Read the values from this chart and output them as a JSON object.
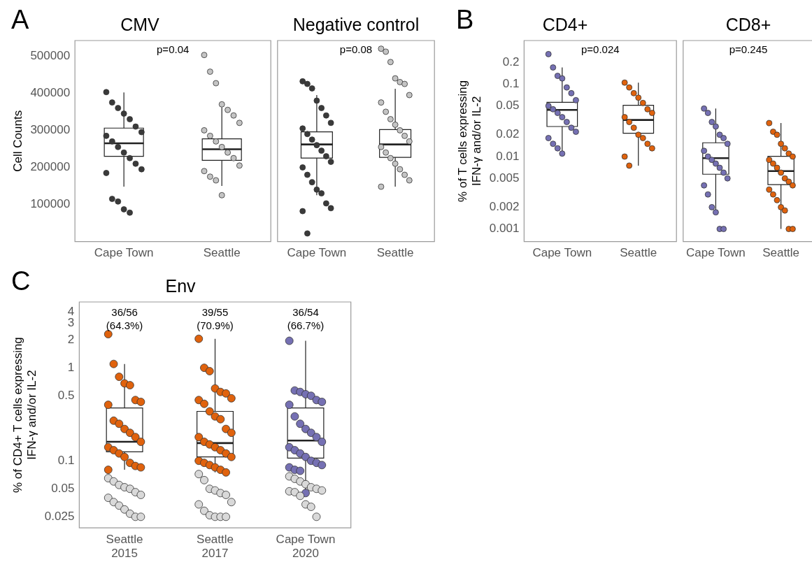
{
  "chart_data": [
    {
      "type": "box",
      "title": "CMV",
      "ylabel": "Cell Counts",
      "categories": [
        "Cape Town",
        "Seattle"
      ],
      "ylim": [
        0,
        542000
      ],
      "yticks": [
        100000,
        200000,
        300000,
        400000,
        500000
      ],
      "annotations": [
        "A",
        "p=0.04"
      ],
      "boxes": [
        {
          "low": 148000,
          "q1": 230000,
          "median": 265000,
          "q3": 306000,
          "high": 402000
        },
        {
          "low": 150000,
          "q1": 219000,
          "median": 249000,
          "q3": 277000,
          "high": 362000
        }
      ],
      "series": [
        {
          "type": "scatter",
          "color": "#3a3a3a",
          "x": [
            "Cape Town",
            "Cape Town",
            "Cape Town",
            "Cape Town",
            "Cape Town",
            "Cape Town",
            "Cape Town",
            "Cape Town",
            "Cape Town",
            "Cape Town",
            "Cape Town",
            "Cape Town",
            "Cape Town",
            "Cape Town",
            "Cape Town",
            "Cape Town",
            "Cape Town",
            "Cape Town",
            "Cape Town"
          ],
          "values": [
            403000,
            375000,
            360000,
            345000,
            330000,
            310000,
            295000,
            285000,
            270000,
            255000,
            240000,
            225000,
            210000,
            195000,
            185000,
            115000,
            108000,
            87000,
            78000
          ]
        },
        {
          "type": "scatter",
          "color": "#c4c4c4",
          "x": [
            "Seattle",
            "Seattle",
            "Seattle",
            "Seattle",
            "Seattle",
            "Seattle",
            "Seattle",
            "Seattle",
            "Seattle",
            "Seattle",
            "Seattle",
            "Seattle",
            "Seattle",
            "Seattle",
            "Seattle",
            "Seattle",
            "Seattle",
            "Seattle"
          ],
          "values": [
            503000,
            458000,
            427000,
            370000,
            355000,
            340000,
            320000,
            300000,
            285000,
            270000,
            255000,
            240000,
            225000,
            205000,
            190000,
            175000,
            165000,
            125000
          ]
        }
      ]
    },
    {
      "type": "box",
      "title": "Negative control",
      "categories": [
        "Cape Town",
        "Seattle"
      ],
      "ylim": [
        0,
        542000
      ],
      "yticks": [
        100000,
        200000,
        300000,
        400000,
        500000
      ],
      "tick_labels": "x",
      "annotations": [
        "p=0.08"
      ],
      "boxes": [
        {
          "low": 125000,
          "q1": 225000,
          "median": 262000,
          "q3": 296000,
          "high": 395000
        },
        {
          "low": 148000,
          "q1": 227000,
          "median": 262000,
          "q3": 302000,
          "high": 412000
        }
      ],
      "series": [
        {
          "type": "scatter",
          "color": "#3a3a3a",
          "x": [
            "Cape Town",
            "Cape Town",
            "Cape Town",
            "Cape Town",
            "Cape Town",
            "Cape Town",
            "Cape Town",
            "Cape Town",
            "Cape Town",
            "Cape Town",
            "Cape Town",
            "Cape Town",
            "Cape Town",
            "Cape Town",
            "Cape Town",
            "Cape Town",
            "Cape Town",
            "Cape Town",
            "Cape Town",
            "Cape Town",
            "Cape Town",
            "Cape Town",
            "Cape Town"
          ],
          "values": [
            432000,
            425000,
            413000,
            380000,
            360000,
            340000,
            320000,
            305000,
            290000,
            275000,
            260000,
            245000,
            230000,
            215000,
            200000,
            180000,
            160000,
            140000,
            130000,
            103000,
            90000,
            82000,
            22000
          ]
        },
        {
          "type": "scatter",
          "color": "#c4c4c4",
          "x": [
            "Seattle",
            "Seattle",
            "Seattle",
            "Seattle",
            "Seattle",
            "Seattle",
            "Seattle",
            "Seattle",
            "Seattle",
            "Seattle",
            "Seattle",
            "Seattle",
            "Seattle",
            "Seattle",
            "Seattle",
            "Seattle",
            "Seattle",
            "Seattle",
            "Seattle",
            "Seattle",
            "Seattle",
            "Seattle"
          ],
          "values": [
            520000,
            512000,
            484000,
            440000,
            430000,
            425000,
            395000,
            375000,
            350000,
            330000,
            315000,
            300000,
            285000,
            270000,
            255000,
            240000,
            225000,
            210000,
            195000,
            180000,
            165000,
            148000
          ]
        }
      ]
    },
    {
      "type": "box",
      "title": "CD4+",
      "ylabel": "% of T cells expressing\nIFN-γ and/or IL-2",
      "categories": [
        "Cape Town",
        "Seattle"
      ],
      "log": true,
      "ylim": [
        0.00067,
        0.4
      ],
      "yticks": [
        0.001,
        0.002,
        0.005,
        0.01,
        0.02,
        0.05,
        0.1,
        0.2
      ],
      "annotations": [
        "B",
        "p=0.024"
      ],
      "boxes": [
        {
          "low": 0.011,
          "q1": 0.026,
          "median": 0.044,
          "q3": 0.056,
          "high": 0.17
        },
        {
          "low": 0.0075,
          "q1": 0.021,
          "median": 0.032,
          "q3": 0.051,
          "high": 0.105
        }
      ],
      "series": [
        {
          "type": "scatter",
          "color": "#7570b3",
          "x": [
            "Cape Town",
            "Cape Town",
            "Cape Town",
            "Cape Town",
            "Cape Town",
            "Cape Town",
            "Cape Town",
            "Cape Town",
            "Cape Town",
            "Cape Town",
            "Cape Town",
            "Cape Town",
            "Cape Town",
            "Cape Town",
            "Cape Town",
            "Cape Town",
            "Cape Town",
            "Cape Town"
          ],
          "values": [
            0.26,
            0.17,
            0.13,
            0.12,
            0.09,
            0.075,
            0.06,
            0.05,
            0.045,
            0.04,
            0.035,
            0.03,
            0.025,
            0.022,
            0.018,
            0.015,
            0.013,
            0.011
          ]
        },
        {
          "type": "scatter",
          "color": "#e0620d",
          "x": [
            "Seattle",
            "Seattle",
            "Seattle",
            "Seattle",
            "Seattle",
            "Seattle",
            "Seattle",
            "Seattle",
            "Seattle",
            "Seattle",
            "Seattle",
            "Seattle",
            "Seattle",
            "Seattle",
            "Seattle",
            "Seattle"
          ],
          "values": [
            0.105,
            0.09,
            0.075,
            0.065,
            0.055,
            0.045,
            0.04,
            0.035,
            0.03,
            0.025,
            0.02,
            0.018,
            0.015,
            0.013,
            0.01,
            0.0075
          ]
        }
      ]
    },
    {
      "type": "box",
      "title": "CD8+",
      "categories": [
        "Cape Town",
        "Seattle"
      ],
      "log": true,
      "ylim": [
        0.00067,
        0.4
      ],
      "yticks": [
        0.001,
        0.002,
        0.005,
        0.01,
        0.02,
        0.05,
        0.1,
        0.2
      ],
      "tick_labels": "x",
      "annotations": [
        "p=0.245"
      ],
      "boxes": [
        {
          "low": 0.0017,
          "q1": 0.0057,
          "median": 0.0095,
          "q3": 0.0155,
          "high": 0.046
        },
        {
          "low": 0.001,
          "q1": 0.0041,
          "median": 0.0063,
          "q3": 0.0101,
          "high": 0.029
        }
      ],
      "series": [
        {
          "type": "scatter",
          "color": "#7570b3",
          "x": [
            "Cape Town",
            "Cape Town",
            "Cape Town",
            "Cape Town",
            "Cape Town",
            "Cape Town",
            "Cape Town",
            "Cape Town",
            "Cape Town",
            "Cape Town",
            "Cape Town",
            "Cape Town",
            "Cape Town",
            "Cape Town",
            "Cape Town",
            "Cape Town",
            "Cape Town",
            "Cape Town",
            "Cape Town",
            "Cape Town"
          ],
          "values": [
            0.046,
            0.04,
            0.03,
            0.026,
            0.02,
            0.018,
            0.015,
            0.012,
            0.01,
            0.009,
            0.008,
            0.007,
            0.006,
            0.005,
            0.004,
            0.003,
            0.002,
            0.0017,
            0.001,
            0.001
          ]
        },
        {
          "type": "scatter",
          "color": "#e0620d",
          "x": [
            "Seattle",
            "Seattle",
            "Seattle",
            "Seattle",
            "Seattle",
            "Seattle",
            "Seattle",
            "Seattle",
            "Seattle",
            "Seattle",
            "Seattle",
            "Seattle",
            "Seattle",
            "Seattle",
            "Seattle",
            "Seattle",
            "Seattle",
            "Seattle",
            "Seattle",
            "Seattle",
            "Seattle"
          ],
          "values": [
            0.029,
            0.022,
            0.02,
            0.015,
            0.013,
            0.011,
            0.01,
            0.009,
            0.008,
            0.007,
            0.006,
            0.005,
            0.0045,
            0.004,
            0.0035,
            0.003,
            0.0025,
            0.002,
            0.0018,
            0.001,
            0.001
          ]
        }
      ]
    },
    {
      "type": "box",
      "title": "Env",
      "ylabel": "% of CD4+ T cells expressing\nIFN-γ and/or IL-2",
      "categories": [
        "Seattle 2015",
        "Seattle 2017",
        "Cape Town 2020"
      ],
      "log": true,
      "ylim": [
        0.019,
        5.1
      ],
      "yticks": [
        0.025,
        0.05,
        0.1,
        0.5,
        1,
        2,
        3,
        4
      ],
      "annotations": [
        "C",
        "36/56\n(64.3%)",
        "39/55\n(70.9%)",
        "36/54\n(66.7%)"
      ],
      "boxes": [
        {
          "low": 0.08,
          "q1": 0.125,
          "median": 0.16,
          "q3": 0.37,
          "high": 1.1
        },
        {
          "low": 0.075,
          "q1": 0.11,
          "median": 0.155,
          "q3": 0.34,
          "high": 2.05
        },
        {
          "low": 0.045,
          "q1": 0.107,
          "median": 0.165,
          "q3": 0.37,
          "high": 1.95
        }
      ],
      "series": [
        {
          "type": "scatter",
          "color": "#d9d9d9",
          "x": [
            "Seattle 2015",
            "Seattle 2015",
            "Seattle 2015",
            "Seattle 2015",
            "Seattle 2015",
            "Seattle 2015",
            "Seattle 2015",
            "Seattle 2015",
            "Seattle 2015",
            "Seattle 2015",
            "Seattle 2015",
            "Seattle 2015",
            "Seattle 2015",
            "Seattle 2015"
          ],
          "values": [
            0.065,
            0.06,
            0.055,
            0.052,
            0.05,
            0.046,
            0.043,
            0.04,
            0.036,
            0.033,
            0.03,
            0.027,
            0.025,
            0.025
          ]
        },
        {
          "type": "scatter",
          "color": "#d9d9d9",
          "x": [
            "Seattle 2017",
            "Seattle 2017",
            "Seattle 2017",
            "Seattle 2017",
            "Seattle 2017",
            "Seattle 2017",
            "Seattle 2017",
            "Seattle 2017",
            "Seattle 2017",
            "Seattle 2017",
            "Seattle 2017",
            "Seattle 2017",
            "Seattle 2017"
          ],
          "values": [
            0.072,
            0.062,
            0.05,
            0.048,
            0.045,
            0.043,
            0.036,
            0.034,
            0.029,
            0.026,
            0.025,
            0.025,
            0.025
          ]
        },
        {
          "type": "scatter",
          "color": "#d9d9d9",
          "x": [
            "Cape Town 2020",
            "Cape Town 2020",
            "Cape Town 2020",
            "Cape Town 2020",
            "Cape Town 2020",
            "Cape Town 2020",
            "Cape Town 2020",
            "Cape Town 2020",
            "Cape Town 2020",
            "Cape Town 2020",
            "Cape Town 2020",
            "Cape Town 2020",
            "Cape Town 2020"
          ],
          "values": [
            0.068,
            0.064,
            0.06,
            0.056,
            0.052,
            0.05,
            0.048,
            0.047,
            0.046,
            0.042,
            0.034,
            0.032,
            0.025
          ]
        },
        {
          "type": "scatter",
          "color": "#e0620d",
          "x": [
            "Seattle 2015",
            "Seattle 2015",
            "Seattle 2015",
            "Seattle 2015",
            "Seattle 2015",
            "Seattle 2015",
            "Seattle 2015",
            "Seattle 2015",
            "Seattle 2015",
            "Seattle 2015",
            "Seattle 2015",
            "Seattle 2015",
            "Seattle 2015",
            "Seattle 2015",
            "Seattle 2015",
            "Seattle 2015",
            "Seattle 2015",
            "Seattle 2015",
            "Seattle 2015",
            "Seattle 2015",
            "Seattle 2015",
            "Seattle 2015"
          ],
          "values": [
            2.3,
            1.1,
            0.8,
            0.68,
            0.65,
            0.45,
            0.43,
            0.4,
            0.27,
            0.25,
            0.22,
            0.2,
            0.18,
            0.16,
            0.14,
            0.13,
            0.12,
            0.11,
            0.095,
            0.088,
            0.085,
            0.08
          ]
        },
        {
          "type": "scatter",
          "color": "#e0620d",
          "x": [
            "Seattle 2017",
            "Seattle 2017",
            "Seattle 2017",
            "Seattle 2017",
            "Seattle 2017",
            "Seattle 2017",
            "Seattle 2017",
            "Seattle 2017",
            "Seattle 2017",
            "Seattle 2017",
            "Seattle 2017",
            "Seattle 2017",
            "Seattle 2017",
            "Seattle 2017",
            "Seattle 2017",
            "Seattle 2017",
            "Seattle 2017",
            "Seattle 2017",
            "Seattle 2017",
            "Seattle 2017",
            "Seattle 2017",
            "Seattle 2017",
            "Seattle 2017",
            "Seattle 2017",
            "Seattle 2017",
            "Seattle 2017",
            "Seattle 2017"
          ],
          "values": [
            2.05,
            1.0,
            0.92,
            0.6,
            0.55,
            0.53,
            0.47,
            0.45,
            0.41,
            0.34,
            0.3,
            0.28,
            0.22,
            0.2,
            0.18,
            0.16,
            0.15,
            0.14,
            0.13,
            0.12,
            0.11,
            0.1,
            0.095,
            0.09,
            0.085,
            0.08,
            0.075
          ]
        },
        {
          "type": "scatter",
          "color": "#7570b3",
          "x": [
            "Cape Town 2020",
            "Cape Town 2020",
            "Cape Town 2020",
            "Cape Town 2020",
            "Cape Town 2020",
            "Cape Town 2020",
            "Cape Town 2020",
            "Cape Town 2020",
            "Cape Town 2020",
            "Cape Town 2020",
            "Cape Town 2020",
            "Cape Town 2020",
            "Cape Town 2020",
            "Cape Town 2020",
            "Cape Town 2020",
            "Cape Town 2020",
            "Cape Town 2020",
            "Cape Town 2020",
            "Cape Town 2020",
            "Cape Town 2020",
            "Cape Town 2020",
            "Cape Town 2020",
            "Cape Town 2020",
            "Cape Town 2020",
            "Cape Town 2020"
          ],
          "values": [
            1.95,
            0.57,
            0.55,
            0.52,
            0.5,
            0.45,
            0.43,
            0.4,
            0.3,
            0.25,
            0.22,
            0.2,
            0.18,
            0.16,
            0.14,
            0.13,
            0.12,
            0.11,
            0.1,
            0.095,
            0.09,
            0.085,
            0.08,
            0.078,
            0.045
          ]
        }
      ]
    }
  ]
}
